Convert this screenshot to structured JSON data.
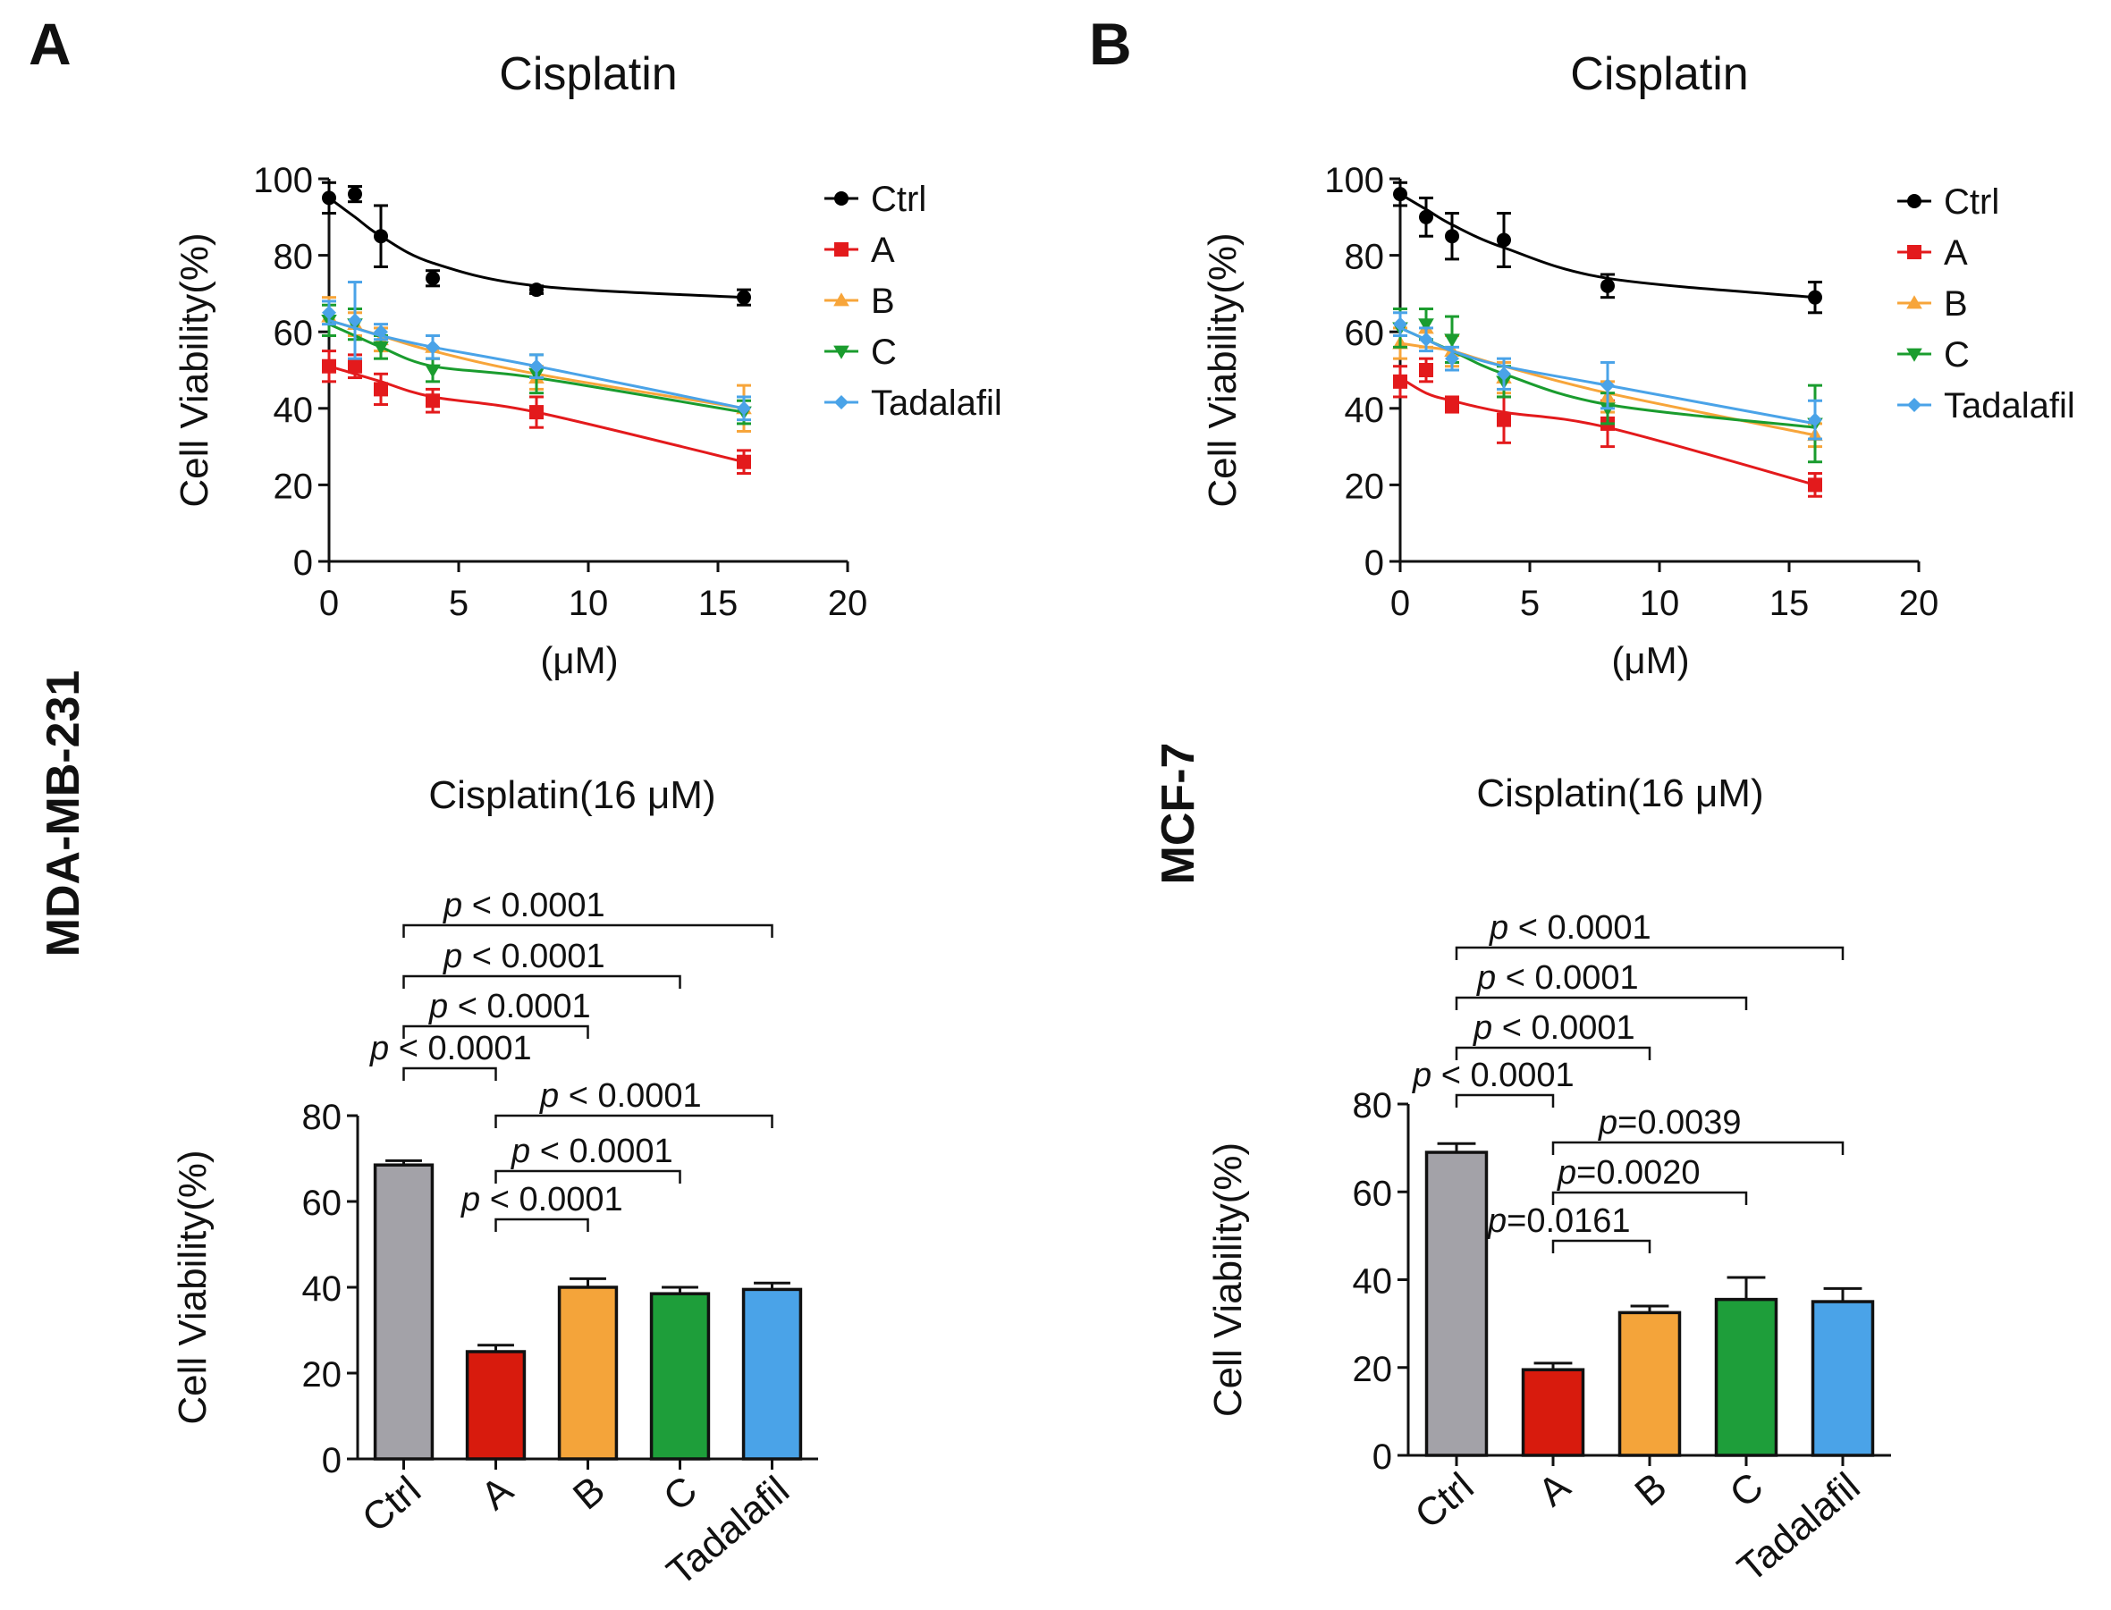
{
  "figure": {
    "panels": [
      {
        "letter": "A",
        "cell_line": "MDA-MB-231"
      },
      {
        "letter": "B",
        "cell_line": "MCF-7"
      }
    ],
    "group_colors": {
      "Ctrl": "#000000",
      "A": "#e31a1c",
      "B": "#f7a53a",
      "C": "#1a9c2e",
      "Tadalafil": "#4aa3e8"
    },
    "bar_colors": {
      "Ctrl": "#a3a2a8",
      "A": "#d81b0d",
      "B": "#f4a43a",
      "C": "#1e9e3a",
      "Tadalafil": "#4aa3e8"
    },
    "marker_shapes": {
      "Ctrl": "circle",
      "A": "square",
      "B": "triangle-up",
      "C": "triangle-down",
      "Tadalafil": "diamond"
    }
  },
  "chart_data": [
    {
      "id": "A-line",
      "type": "line",
      "title": "Cisplatin",
      "xlabel": "(μM)",
      "ylabel": "Cell Viability(%)",
      "xlim": [
        0,
        20
      ],
      "ylim": [
        0,
        100
      ],
      "xticks": [
        0,
        5,
        10,
        15,
        20
      ],
      "yticks": [
        0,
        20,
        40,
        60,
        80,
        100
      ],
      "legend_position": "right",
      "x": [
        0,
        1,
        2,
        4,
        8,
        16
      ],
      "series": [
        {
          "name": "Ctrl",
          "values": [
            95,
            96,
            85,
            74,
            71,
            69
          ],
          "errors": [
            4,
            2,
            8,
            2,
            1,
            2
          ],
          "fit": [
            95,
            90,
            85,
            78,
            72,
            69
          ]
        },
        {
          "name": "A",
          "values": [
            51,
            51,
            45,
            42,
            39,
            26
          ],
          "errors": [
            4,
            3,
            4,
            3,
            4,
            3
          ],
          "fit": [
            51,
            49,
            47,
            43,
            39,
            26
          ]
        },
        {
          "name": "B",
          "values": [
            64,
            62,
            58,
            56,
            48,
            40
          ],
          "errors": [
            5,
            3,
            3,
            3,
            3,
            6
          ],
          "fit": [
            63,
            61,
            59,
            55,
            49,
            40
          ]
        },
        {
          "name": "C",
          "values": [
            63,
            62,
            56,
            50,
            49,
            39
          ],
          "errors": [
            4,
            4,
            3,
            3,
            5,
            3
          ],
          "fit": [
            62,
            59,
            56,
            51,
            48,
            39
          ]
        },
        {
          "name": "Tadalafil",
          "values": [
            65,
            63,
            60,
            56,
            51,
            40
          ],
          "errors": [
            3,
            10,
            2,
            3,
            3,
            3
          ],
          "fit": [
            63,
            61,
            59,
            56,
            51,
            40
          ]
        }
      ]
    },
    {
      "id": "A-bar",
      "type": "bar",
      "title": "Cisplatin(16  μM)",
      "ylabel": "Cell Viability(%)",
      "ylim": [
        0,
        80
      ],
      "yticks": [
        0,
        20,
        40,
        60,
        80
      ],
      "categories": [
        "Ctrl",
        "A",
        "B",
        "C",
        "Tadalafil"
      ],
      "values": [
        68.5,
        25,
        40,
        38.5,
        39.5
      ],
      "errors": [
        1,
        1.5,
        2,
        1.5,
        1.5
      ],
      "comparisons": [
        {
          "from": "Ctrl",
          "to": "Tadalafil",
          "p": "p < 0.0001"
        },
        {
          "from": "Ctrl",
          "to": "C",
          "p": "p < 0.0001"
        },
        {
          "from": "Ctrl",
          "to": "B",
          "p": "p < 0.0001"
        },
        {
          "from": "Ctrl",
          "to": "A",
          "p": "p < 0.0001"
        },
        {
          "from": "A",
          "to": "Tadalafil",
          "p": "p < 0.0001"
        },
        {
          "from": "A",
          "to": "C",
          "p": "p < 0.0001"
        },
        {
          "from": "A",
          "to": "B",
          "p": "p < 0.0001"
        }
      ]
    },
    {
      "id": "B-line",
      "type": "line",
      "title": "Cisplatin",
      "xlabel": "(μM)",
      "ylabel": "Cell Viability(%)",
      "xlim": [
        0,
        20
      ],
      "ylim": [
        0,
        100
      ],
      "xticks": [
        0,
        5,
        10,
        15,
        20
      ],
      "yticks": [
        0,
        20,
        40,
        60,
        80,
        100
      ],
      "legend_position": "right",
      "x": [
        0,
        1,
        2,
        4,
        8,
        16
      ],
      "series": [
        {
          "name": "Ctrl",
          "values": [
            96,
            90,
            85,
            84,
            72,
            69
          ],
          "errors": [
            3,
            5,
            6,
            7,
            3,
            4
          ],
          "fit": [
            96,
            92,
            88,
            82,
            74,
            69
          ]
        },
        {
          "name": "A",
          "values": [
            47,
            50,
            41,
            37,
            36,
            20
          ],
          "errors": [
            4,
            3,
            2,
            6,
            6,
            3
          ],
          "fit": [
            48,
            44,
            42,
            39,
            35,
            20
          ]
        },
        {
          "name": "B",
          "values": [
            57,
            61,
            55,
            48,
            43,
            33
          ],
          "errors": [
            4,
            5,
            4,
            4,
            4,
            3
          ],
          "fit": [
            57,
            56,
            55,
            51,
            44,
            33
          ]
        },
        {
          "name": "C",
          "values": [
            61,
            62,
            58,
            47,
            40,
            36
          ],
          "errors": [
            5,
            4,
            6,
            4,
            4,
            10
          ],
          "fit": [
            61,
            58,
            55,
            49,
            41,
            35
          ]
        },
        {
          "name": "Tadalafil",
          "values": [
            62,
            58,
            53,
            49,
            46,
            37
          ],
          "errors": [
            3,
            3,
            3,
            4,
            6,
            5
          ],
          "fit": [
            61,
            58,
            55,
            51,
            46,
            36
          ]
        }
      ]
    },
    {
      "id": "B-bar",
      "type": "bar",
      "title": "Cisplatin(16  μM)",
      "ylabel": "Cell Viability(%)",
      "ylim": [
        0,
        80
      ],
      "yticks": [
        0,
        20,
        40,
        60,
        80
      ],
      "categories": [
        "Ctrl",
        "A",
        "B",
        "C",
        "Tadalafil"
      ],
      "values": [
        69,
        19.5,
        32.5,
        35.5,
        35
      ],
      "errors": [
        2,
        1.5,
        1.5,
        5,
        3
      ],
      "comparisons": [
        {
          "from": "Ctrl",
          "to": "Tadalafil",
          "p": "p < 0.0001"
        },
        {
          "from": "Ctrl",
          "to": "C",
          "p": "p < 0.0001"
        },
        {
          "from": "Ctrl",
          "to": "B",
          "p": "p < 0.0001"
        },
        {
          "from": "Ctrl",
          "to": "A",
          "p": "p < 0.0001"
        },
        {
          "from": "A",
          "to": "Tadalafil",
          "p": "p=0.0039"
        },
        {
          "from": "A",
          "to": "C",
          "p": "p=0.0020"
        },
        {
          "from": "A",
          "to": "B",
          "p": "p=0.0161"
        }
      ]
    }
  ]
}
